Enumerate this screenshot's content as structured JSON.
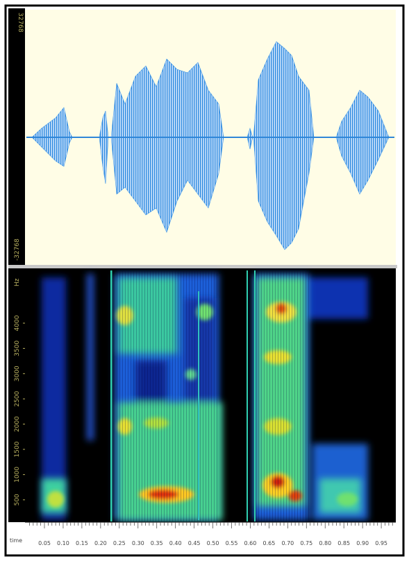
{
  "waveform": {
    "y_max_label": "32768",
    "y_min_label": "-32768"
  },
  "spectrogram": {
    "unit_label": "Hz",
    "freq_labels": [
      "4000",
      "3500",
      "3000",
      "2500",
      "2000",
      "1500",
      "1000",
      "500"
    ]
  },
  "time_axis": {
    "label": "time",
    "tick_labels": [
      "0.05",
      "0.10",
      "0.15",
      "0.20",
      "0.25",
      "0.30",
      "0.35",
      "0.40",
      "0.45",
      "0.50",
      "0.55",
      "0.60",
      "0.65",
      "0.70",
      "0.75",
      "0.80",
      "0.85",
      "0.90",
      "0.95"
    ]
  }
}
